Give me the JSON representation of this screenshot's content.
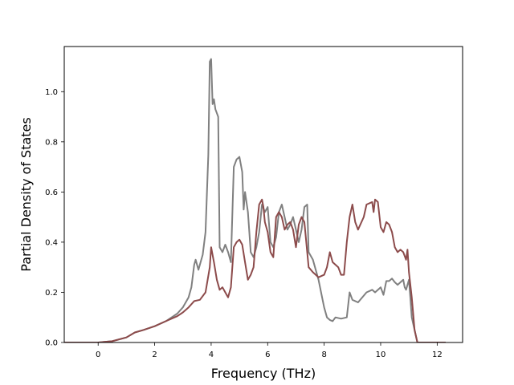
{
  "chart_data": {
    "type": "line",
    "xlabel": "Frequency (THz)",
    "ylabel": "Partial Density of States",
    "xlim": [
      -1.2,
      12.9
    ],
    "ylim": [
      0.0,
      1.18
    ],
    "xticks": [
      0,
      2,
      4,
      6,
      8,
      10,
      12
    ],
    "xtick_labels": [
      "0",
      "2",
      "4",
      "6",
      "8",
      "10",
      "12"
    ],
    "yticks": [
      0.0,
      0.2,
      0.4,
      0.6,
      0.8,
      1.0
    ],
    "ytick_labels": [
      "0.0",
      "0.2",
      "0.4",
      "0.6",
      "0.8",
      "1.0"
    ],
    "grid": false,
    "series": [
      {
        "color": "#808080",
        "points": [
          [
            -1.2,
            0
          ],
          [
            0,
            0
          ],
          [
            0.5,
            0.005
          ],
          [
            1.0,
            0.02
          ],
          [
            1.3,
            0.04
          ],
          [
            1.6,
            0.05
          ],
          [
            2.0,
            0.065
          ],
          [
            2.4,
            0.085
          ],
          [
            2.8,
            0.115
          ],
          [
            3.0,
            0.14
          ],
          [
            3.2,
            0.18
          ],
          [
            3.3,
            0.22
          ],
          [
            3.4,
            0.31
          ],
          [
            3.45,
            0.33
          ],
          [
            3.55,
            0.29
          ],
          [
            3.7,
            0.35
          ],
          [
            3.8,
            0.44
          ],
          [
            3.9,
            0.75
          ],
          [
            3.95,
            1.12
          ],
          [
            4.0,
            1.13
          ],
          [
            4.05,
            0.95
          ],
          [
            4.1,
            0.97
          ],
          [
            4.15,
            0.93
          ],
          [
            4.25,
            0.9
          ],
          [
            4.3,
            0.38
          ],
          [
            4.4,
            0.36
          ],
          [
            4.5,
            0.39
          ],
          [
            4.6,
            0.36
          ],
          [
            4.7,
            0.32
          ],
          [
            4.8,
            0.7
          ],
          [
            4.9,
            0.73
          ],
          [
            5.0,
            0.74
          ],
          [
            5.1,
            0.68
          ],
          [
            5.15,
            0.53
          ],
          [
            5.2,
            0.6
          ],
          [
            5.3,
            0.52
          ],
          [
            5.4,
            0.36
          ],
          [
            5.5,
            0.34
          ],
          [
            5.6,
            0.38
          ],
          [
            5.7,
            0.44
          ],
          [
            5.8,
            0.55
          ],
          [
            5.9,
            0.52
          ],
          [
            6.0,
            0.54
          ],
          [
            6.1,
            0.4
          ],
          [
            6.2,
            0.38
          ],
          [
            6.3,
            0.42
          ],
          [
            6.4,
            0.52
          ],
          [
            6.5,
            0.55
          ],
          [
            6.6,
            0.5
          ],
          [
            6.7,
            0.45
          ],
          [
            6.8,
            0.47
          ],
          [
            6.9,
            0.5
          ],
          [
            7.0,
            0.45
          ],
          [
            7.1,
            0.4
          ],
          [
            7.2,
            0.45
          ],
          [
            7.3,
            0.54
          ],
          [
            7.4,
            0.55
          ],
          [
            7.45,
            0.36
          ],
          [
            7.6,
            0.33
          ],
          [
            7.8,
            0.25
          ],
          [
            8.0,
            0.14
          ],
          [
            8.1,
            0.1
          ],
          [
            8.2,
            0.09
          ],
          [
            8.3,
            0.085
          ],
          [
            8.4,
            0.1
          ],
          [
            8.6,
            0.095
          ],
          [
            8.8,
            0.1
          ],
          [
            8.9,
            0.2
          ],
          [
            9.0,
            0.17
          ],
          [
            9.2,
            0.16
          ],
          [
            9.5,
            0.2
          ],
          [
            9.7,
            0.21
          ],
          [
            9.8,
            0.2
          ],
          [
            10.0,
            0.22
          ],
          [
            10.1,
            0.19
          ],
          [
            10.2,
            0.245
          ],
          [
            10.3,
            0.245
          ],
          [
            10.4,
            0.255
          ],
          [
            10.5,
            0.24
          ],
          [
            10.6,
            0.23
          ],
          [
            10.8,
            0.25
          ],
          [
            10.85,
            0.22
          ],
          [
            10.9,
            0.21
          ],
          [
            11.0,
            0.25
          ],
          [
            11.05,
            0.18
          ],
          [
            11.1,
            0.1
          ],
          [
            11.2,
            0.05
          ],
          [
            11.3,
            0
          ],
          [
            12.3,
            0
          ]
        ]
      },
      {
        "color": "#8c4b4b",
        "points": [
          [
            -1.2,
            0
          ],
          [
            0,
            0
          ],
          [
            0.5,
            0.005
          ],
          [
            1.0,
            0.02
          ],
          [
            1.3,
            0.04
          ],
          [
            1.6,
            0.05
          ],
          [
            2.0,
            0.065
          ],
          [
            2.4,
            0.085
          ],
          [
            2.8,
            0.105
          ],
          [
            3.0,
            0.12
          ],
          [
            3.2,
            0.14
          ],
          [
            3.4,
            0.165
          ],
          [
            3.6,
            0.17
          ],
          [
            3.8,
            0.2
          ],
          [
            3.95,
            0.3
          ],
          [
            4.0,
            0.38
          ],
          [
            4.1,
            0.32
          ],
          [
            4.2,
            0.25
          ],
          [
            4.3,
            0.21
          ],
          [
            4.4,
            0.22
          ],
          [
            4.5,
            0.2
          ],
          [
            4.6,
            0.18
          ],
          [
            4.7,
            0.22
          ],
          [
            4.8,
            0.38
          ],
          [
            4.9,
            0.4
          ],
          [
            5.0,
            0.41
          ],
          [
            5.1,
            0.39
          ],
          [
            5.2,
            0.32
          ],
          [
            5.3,
            0.25
          ],
          [
            5.4,
            0.27
          ],
          [
            5.5,
            0.3
          ],
          [
            5.6,
            0.44
          ],
          [
            5.7,
            0.55
          ],
          [
            5.8,
            0.57
          ],
          [
            5.85,
            0.54
          ],
          [
            5.9,
            0.48
          ],
          [
            6.0,
            0.44
          ],
          [
            6.1,
            0.36
          ],
          [
            6.2,
            0.34
          ],
          [
            6.3,
            0.5
          ],
          [
            6.4,
            0.52
          ],
          [
            6.5,
            0.5
          ],
          [
            6.6,
            0.45
          ],
          [
            6.7,
            0.47
          ],
          [
            6.8,
            0.48
          ],
          [
            6.9,
            0.45
          ],
          [
            7.0,
            0.38
          ],
          [
            7.1,
            0.47
          ],
          [
            7.2,
            0.5
          ],
          [
            7.3,
            0.48
          ],
          [
            7.45,
            0.3
          ],
          [
            7.6,
            0.28
          ],
          [
            7.8,
            0.26
          ],
          [
            8.0,
            0.27
          ],
          [
            8.1,
            0.3
          ],
          [
            8.2,
            0.36
          ],
          [
            8.3,
            0.32
          ],
          [
            8.5,
            0.3
          ],
          [
            8.6,
            0.27
          ],
          [
            8.7,
            0.27
          ],
          [
            8.8,
            0.4
          ],
          [
            8.9,
            0.5
          ],
          [
            9.0,
            0.55
          ],
          [
            9.1,
            0.48
          ],
          [
            9.2,
            0.45
          ],
          [
            9.4,
            0.5
          ],
          [
            9.5,
            0.55
          ],
          [
            9.7,
            0.56
          ],
          [
            9.75,
            0.52
          ],
          [
            9.8,
            0.57
          ],
          [
            9.9,
            0.56
          ],
          [
            10.0,
            0.46
          ],
          [
            10.1,
            0.44
          ],
          [
            10.2,
            0.48
          ],
          [
            10.3,
            0.47
          ],
          [
            10.4,
            0.44
          ],
          [
            10.5,
            0.38
          ],
          [
            10.6,
            0.36
          ],
          [
            10.7,
            0.37
          ],
          [
            10.8,
            0.36
          ],
          [
            10.9,
            0.33
          ],
          [
            10.95,
            0.37
          ],
          [
            11.0,
            0.28
          ],
          [
            11.1,
            0.18
          ],
          [
            11.2,
            0.05
          ],
          [
            11.3,
            0
          ],
          [
            12.3,
            0
          ]
        ]
      }
    ]
  }
}
